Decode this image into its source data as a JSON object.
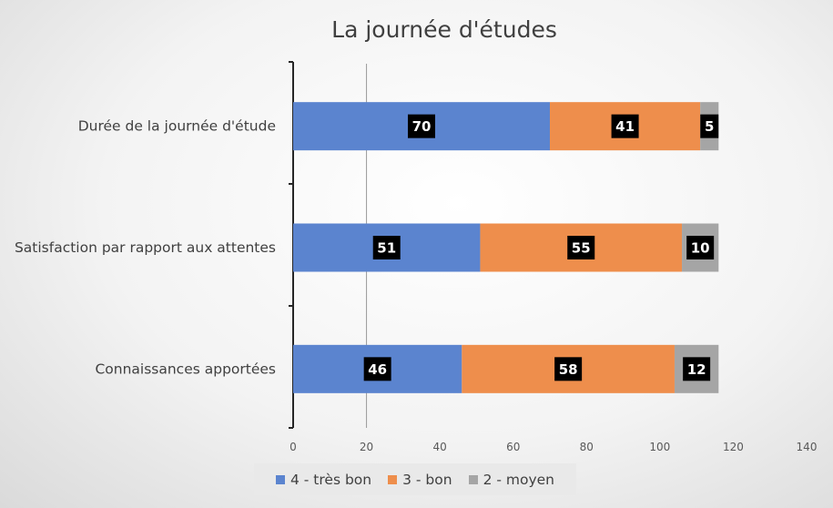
{
  "chart_data": {
    "type": "bar",
    "orientation": "horizontal",
    "stacked": true,
    "title": "La journée d'études",
    "categories": [
      "Durée de la journée d'étude",
      "Satisfaction par rapport aux attentes",
      "Connaissances apportées"
    ],
    "series": [
      {
        "name": "4 - très bon",
        "color": "#5b84cf",
        "values": [
          70,
          51,
          46
        ]
      },
      {
        "name": "3 - bon",
        "color": "#ee8e4c",
        "values": [
          41,
          55,
          58
        ]
      },
      {
        "name": "2 - moyen",
        "color": "#a5a5a5",
        "values": [
          5,
          10,
          12
        ]
      }
    ],
    "xlim": [
      0,
      140
    ],
    "xticks": [
      "0",
      "20",
      "40",
      "60",
      "80",
      "100",
      "120",
      "140"
    ],
    "xlabel": "",
    "ylabel": "",
    "legend_position": "bottom",
    "grid": false,
    "reference_line_x": 20
  }
}
